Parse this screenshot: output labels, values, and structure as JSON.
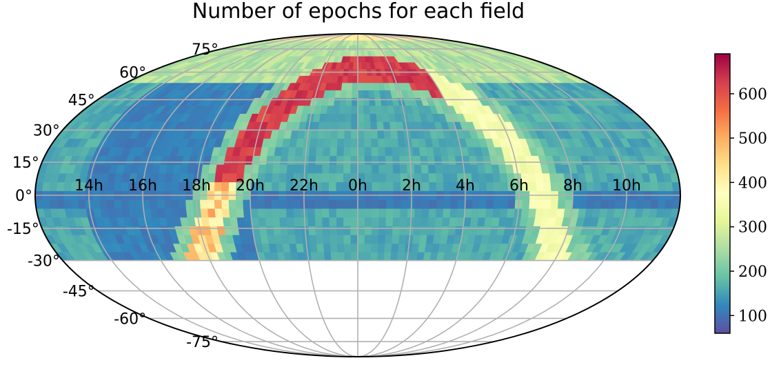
{
  "chart_data": {
    "type": "heatmap",
    "projection": "mollweide",
    "title": "Number of epochs for each field",
    "x_ticks": [
      "14h",
      "16h",
      "18h",
      "20h",
      "22h",
      "0h",
      "2h",
      "4h",
      "6h",
      "8h",
      "10h"
    ],
    "x_tick_values_h": [
      14,
      16,
      18,
      20,
      22,
      0,
      2,
      4,
      6,
      8,
      10
    ],
    "y_ticks": [
      "75°",
      "60°",
      "45°",
      "30°",
      "15°",
      "0°",
      "-15°",
      "-30°",
      "-45°",
      "-60°",
      "-75°"
    ],
    "y_tick_values_deg": [
      75,
      60,
      45,
      30,
      15,
      0,
      -15,
      -30,
      -45,
      -60,
      -75
    ],
    "dec_range": [
      -30,
      90
    ],
    "colorbar": {
      "ticks": [
        "100",
        "200",
        "300",
        "400",
        "500",
        "600"
      ],
      "tick_values": [
        100,
        200,
        300,
        400,
        500,
        600
      ],
      "range": [
        60,
        690
      ],
      "colormap": "Spectral_r",
      "stops": [
        "#5e4fa2",
        "#3288bd",
        "#66c2a5",
        "#abdda4",
        "#e6f598",
        "#ffffbf",
        "#fee08b",
        "#fdae61",
        "#f46d43",
        "#d53e4f",
        "#9e0142"
      ]
    },
    "grid": true,
    "grid_color": "#b0b0b0",
    "approx_field_values": {
      "galactic_plane_peak": 650,
      "galactic_plane_anticenter": 350,
      "north_cap": 400,
      "dec_60_80_band": 250,
      "galactic_halo_near_plane": 190,
      "typical_background": 150,
      "low_background_ra_14h_20h": 100
    }
  }
}
